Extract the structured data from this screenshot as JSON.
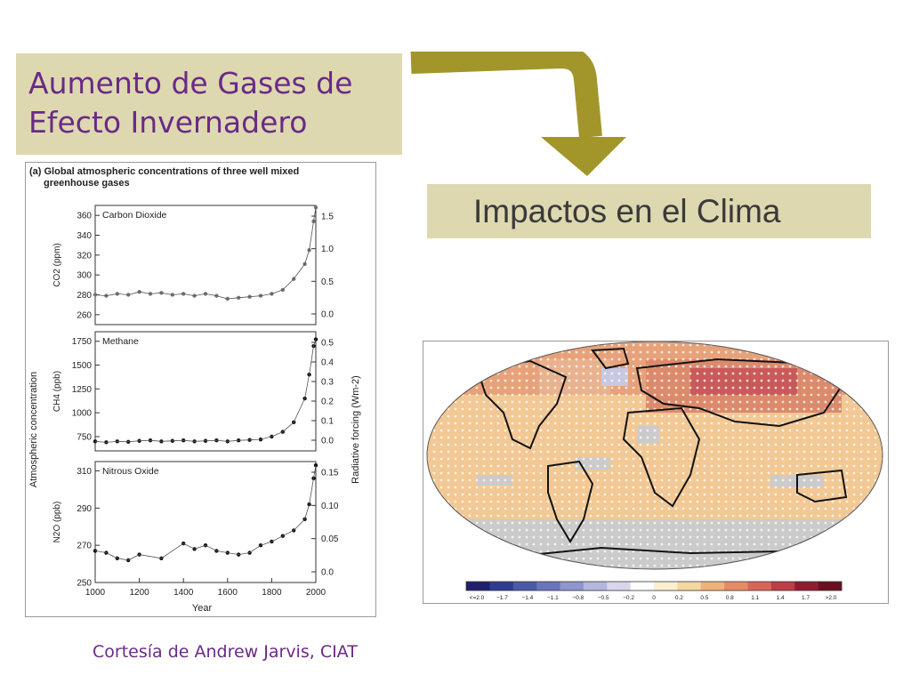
{
  "slide": {
    "title": "Aumento de Gases de\nEfecto Invernadero",
    "impact_label": "Impactos en el Clima",
    "credit": "Cortesía de Andrew Jarvis, CIAT"
  },
  "colors": {
    "box_bg": "#ddd8b0",
    "title": "#6a2a86",
    "arrow": "#a2962b"
  },
  "chart_data": [
    {
      "type": "scatter",
      "panel_heading": "(a) Global atmospheric concentrations of three well mixed greenhouse gases",
      "title": "Carbon Dioxide",
      "xlabel": "Year",
      "ylabel": "CO2 (ppm)",
      "y2label": "Radiative forcing (Wm-2)",
      "x_ticks": [
        "1000",
        "1200",
        "1400",
        "1600",
        "1800",
        "2000"
      ],
      "y_ticks": [
        "260",
        "280",
        "300",
        "320",
        "340",
        "360"
      ],
      "y2_ticks": [
        "0.0",
        "0.5",
        "1.0",
        "1.5"
      ],
      "ylim": [
        250,
        370
      ],
      "x": [
        1000,
        1050,
        1100,
        1150,
        1200,
        1250,
        1300,
        1350,
        1400,
        1450,
        1500,
        1550,
        1600,
        1650,
        1700,
        1750,
        1800,
        1850,
        1900,
        1950,
        1970,
        1990,
        2000
      ],
      "values": [
        280,
        279,
        281,
        280,
        283,
        281,
        282,
        280,
        281,
        279,
        281,
        279,
        276,
        277,
        278,
        279,
        281,
        285,
        296,
        311,
        325,
        354,
        368
      ]
    },
    {
      "type": "scatter",
      "title": "Methane",
      "xlabel": "Year",
      "ylabel": "CH4 (ppb)",
      "y2label": "Radiative forcing (Wm-2)",
      "shared_ylabel": "Atmospheric concentration",
      "y_ticks": [
        "750",
        "1000",
        "1250",
        "1500",
        "1750"
      ],
      "y2_ticks": [
        "0.0",
        "0.1",
        "0.2",
        "0.3",
        "0.4",
        "0.5"
      ],
      "ylim": [
        600,
        1850
      ],
      "x": [
        1000,
        1050,
        1100,
        1150,
        1200,
        1250,
        1300,
        1350,
        1400,
        1450,
        1500,
        1550,
        1600,
        1650,
        1700,
        1750,
        1800,
        1850,
        1900,
        1950,
        1970,
        1990,
        2000
      ],
      "values": [
        700,
        690,
        700,
        695,
        705,
        710,
        700,
        705,
        710,
        700,
        705,
        710,
        700,
        710,
        715,
        720,
        750,
        800,
        900,
        1150,
        1400,
        1700,
        1770
      ]
    },
    {
      "type": "scatter",
      "title": "Nitrous Oxide",
      "xlabel": "Year",
      "ylabel": "N2O (ppb)",
      "y2label": "Radiative forcing (Wm-2)",
      "y_ticks": [
        "250",
        "270",
        "290",
        "310"
      ],
      "y2_ticks": [
        "0.0",
        "0.05",
        "0.10",
        "0.15"
      ],
      "ylim": [
        250,
        315
      ],
      "x": [
        1000,
        1050,
        1100,
        1150,
        1200,
        1300,
        1400,
        1450,
        1500,
        1550,
        1600,
        1650,
        1700,
        1750,
        1800,
        1850,
        1900,
        1950,
        1970,
        1990,
        2000
      ],
      "values": [
        267,
        266,
        263,
        262,
        265,
        263,
        271,
        268,
        270,
        267,
        266,
        265,
        266,
        270,
        272,
        275,
        278,
        284,
        292,
        306,
        313
      ]
    },
    {
      "type": "heatmap",
      "title": "",
      "colorbar_ticks": [
        "<=2.0",
        "−1.7",
        "−1.4",
        "−1.1",
        "−0.8",
        "−0.5",
        "−0.2",
        "0",
        "0.2",
        "0.5",
        "0.8",
        "1.1",
        "1.4",
        "1.7",
        ">2.0"
      ],
      "colorbar_colors": [
        "#1f1f6b",
        "#2e3c8f",
        "#4b5aa8",
        "#6a74bd",
        "#8f95cf",
        "#b5b6df",
        "#d8d6ec",
        "#ffffff",
        "#fbefd0",
        "#f5d79f",
        "#efb27a",
        "#e58c65",
        "#d66757",
        "#bb3f46",
        "#8e1d2f",
        "#6a1020"
      ]
    }
  ]
}
